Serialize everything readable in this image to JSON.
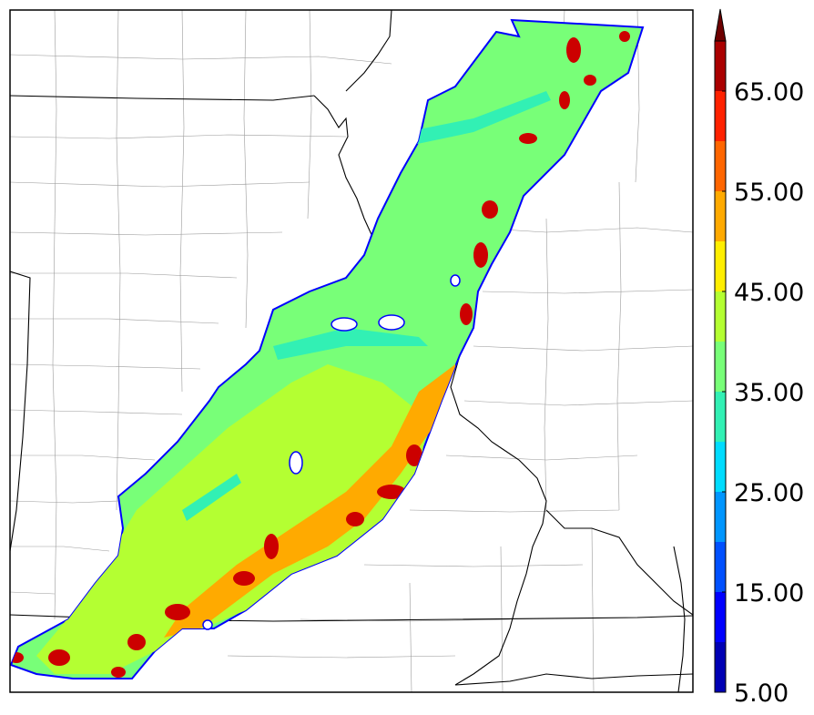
{
  "colorbar": {
    "ticks": [
      {
        "value": 5,
        "label": "5.00"
      },
      {
        "value": 15,
        "label": "15.00"
      },
      {
        "value": 25,
        "label": "25.00"
      },
      {
        "value": 35,
        "label": "35.00"
      },
      {
        "value": 45,
        "label": "45.00"
      },
      {
        "value": 55,
        "label": "55.00"
      },
      {
        "value": 65,
        "label": "65.00"
      }
    ],
    "min": 5,
    "max": 70,
    "step": 5,
    "extend": "max",
    "colors": [
      "#0000b4",
      "#0000ff",
      "#0050ff",
      "#0096ff",
      "#00dcff",
      "#32f0b4",
      "#78ff78",
      "#b4ff32",
      "#ffee00",
      "#ffaa00",
      "#ff6600",
      "#ff2200",
      "#aa0000",
      "#6e0000"
    ]
  },
  "map": {
    "field_colors": {
      "low": "#32f0b4",
      "mid": "#b4ff32",
      "high": "#ffee00",
      "max": "#cc0000",
      "edge": "#0000ff"
    },
    "boundary_color": "#000000",
    "county_color": "#9a9a9a"
  }
}
